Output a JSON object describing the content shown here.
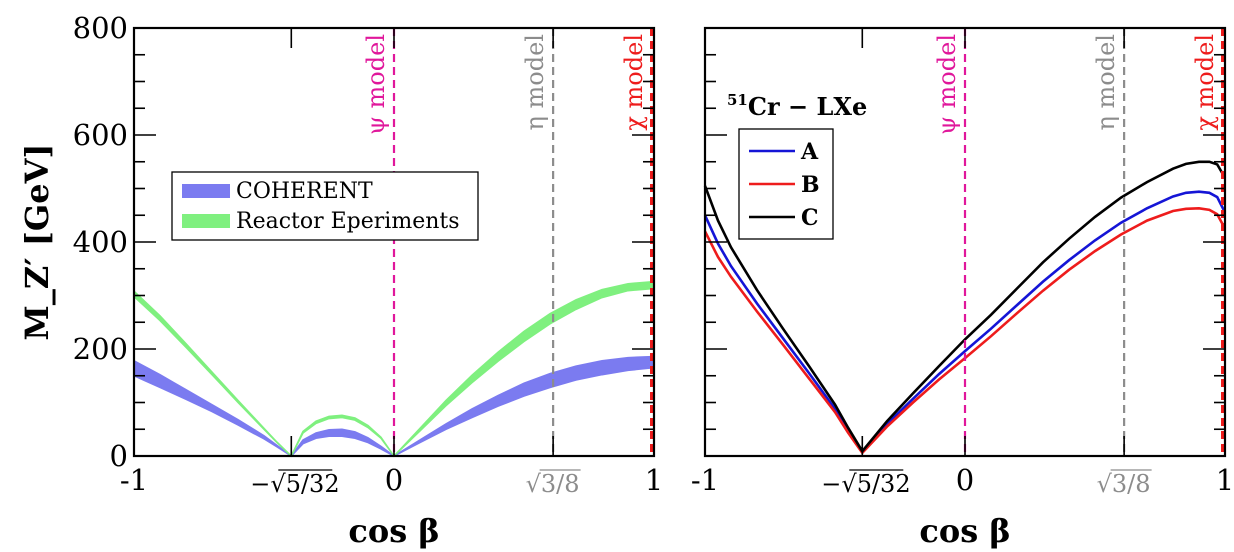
{
  "chart_data": [
    {
      "type": "area",
      "panel": "left",
      "xlabel": "cos β",
      "ylabel": "M_Z′ [GeV]",
      "xlim": [
        -1,
        1
      ],
      "ylim": [
        0,
        800
      ],
      "y_ticks": [
        "0",
        "200",
        "400",
        "600",
        "800"
      ],
      "x_ticks": [
        {
          "value": -1,
          "label": "-1",
          "color": "#000000"
        },
        {
          "value": -0.395,
          "label": "−√5/32",
          "color": "#000000"
        },
        {
          "value": 0,
          "label": "0",
          "color": "#e0179b"
        },
        {
          "value": 0.612,
          "label": "√3/8",
          "color": "#8c8c8c"
        },
        {
          "value": 1,
          "label": "1",
          "color": "#ee1c1c"
        }
      ],
      "vlines": [
        {
          "x": 0,
          "label": "ψ model",
          "color": "#e0179b"
        },
        {
          "x": 0.612,
          "label": "η model",
          "color": "#8c8c8c"
        },
        {
          "x": 1,
          "label": "χ model",
          "color": "#ee1c1c"
        }
      ],
      "legend": {
        "position": "center-left",
        "entries": [
          {
            "name": "COHERENT",
            "color": "#7b7bf0"
          },
          {
            "name": "Reactor Eperiments",
            "color": "#7ff07f"
          }
        ]
      },
      "series": [
        {
          "name": "COHERENT",
          "color": "#7b7bf0",
          "x": [
            -1,
            -0.9,
            -0.8,
            -0.7,
            -0.6,
            -0.5,
            -0.45,
            -0.395,
            -0.35,
            -0.3,
            -0.25,
            -0.2,
            -0.15,
            -0.1,
            -0.05,
            0,
            0.1,
            0.2,
            0.3,
            0.4,
            0.5,
            0.6,
            0.7,
            0.8,
            0.9,
            1
          ],
          "lower": [
            150,
            128,
            106,
            83,
            58,
            32,
            17,
            0,
            23,
            33,
            37,
            37,
            33,
            25,
            13,
            0,
            25,
            50,
            72,
            93,
            112,
            128,
            142,
            152,
            160,
            165
          ],
          "upper": [
            178,
            152,
            124,
            96,
            68,
            38,
            20,
            0,
            30,
            43,
            49,
            50,
            45,
            34,
            18,
            0,
            30,
            60,
            88,
            113,
            136,
            154,
            168,
            178,
            184,
            186
          ]
        },
        {
          "name": "Reactor Eperiments",
          "color": "#7ff07f",
          "x": [
            -1,
            -0.9,
            -0.8,
            -0.7,
            -0.6,
            -0.5,
            -0.45,
            -0.395,
            -0.35,
            -0.3,
            -0.25,
            -0.2,
            -0.15,
            -0.1,
            -0.05,
            0,
            0.1,
            0.2,
            0.3,
            0.4,
            0.5,
            0.6,
            0.7,
            0.8,
            0.9,
            1
          ],
          "lower": [
            298,
            253,
            203,
            152,
            100,
            50,
            25,
            0,
            43,
            61,
            70,
            72,
            67,
            53,
            33,
            0,
            47,
            94,
            137,
            177,
            214,
            247,
            274,
            296,
            309,
            313
          ],
          "upper": [
            308,
            262,
            210,
            157,
            104,
            52,
            26,
            0,
            46,
            65,
            74,
            76,
            71,
            57,
            35,
            0,
            52,
            104,
            151,
            194,
            233,
            266,
            292,
            311,
            322,
            326
          ]
        }
      ]
    },
    {
      "type": "line",
      "panel": "right",
      "xlabel": "cos β",
      "xlim": [
        -1,
        1
      ],
      "ylim": [
        0,
        800
      ],
      "x_ticks": [
        {
          "value": -1,
          "label": "-1",
          "color": "#000000"
        },
        {
          "value": -0.395,
          "label": "−√5/32",
          "color": "#000000"
        },
        {
          "value": 0,
          "label": "0",
          "color": "#e0179b"
        },
        {
          "value": 0.612,
          "label": "√3/8",
          "color": "#8c8c8c"
        },
        {
          "value": 1,
          "label": "1",
          "color": "#ee1c1c"
        }
      ],
      "vlines": [
        {
          "x": 0,
          "label": "ψ model",
          "color": "#e0179b"
        },
        {
          "x": 0.612,
          "label": "η model",
          "color": "#8c8c8c"
        },
        {
          "x": 1,
          "label": "χ model",
          "color": "#ee1c1c"
        }
      ],
      "annotation": {
        "sup": "51",
        "main": "Cr − LXe"
      },
      "legend": {
        "position": "upper-left",
        "entries": [
          {
            "name": "A",
            "color": "#1515d6"
          },
          {
            "name": "B",
            "color": "#ee1c1c"
          },
          {
            "name": "C",
            "color": "#000000"
          }
        ]
      },
      "series": [
        {
          "name": "A",
          "color": "#1515d6",
          "x": [
            -1,
            -0.95,
            -0.9,
            -0.8,
            -0.7,
            -0.6,
            -0.5,
            -0.45,
            -0.395,
            -0.3,
            -0.2,
            -0.1,
            0,
            0.1,
            0.2,
            0.3,
            0.4,
            0.5,
            0.6,
            0.7,
            0.8,
            0.85,
            0.9,
            0.94,
            0.97,
            1
          ],
          "y": [
            450,
            397,
            355,
            285,
            220,
            155,
            88,
            48,
            8,
            60,
            107,
            153,
            196,
            238,
            282,
            326,
            366,
            403,
            436,
            463,
            485,
            492,
            494,
            492,
            484,
            455
          ]
        },
        {
          "name": "B",
          "color": "#ee1c1c",
          "x": [
            -1,
            -0.95,
            -0.9,
            -0.8,
            -0.7,
            -0.6,
            -0.5,
            -0.45,
            -0.395,
            -0.3,
            -0.2,
            -0.1,
            0,
            0.1,
            0.2,
            0.3,
            0.4,
            0.5,
            0.6,
            0.7,
            0.8,
            0.85,
            0.9,
            0.94,
            0.97,
            1
          ],
          "y": [
            420,
            372,
            335,
            270,
            208,
            145,
            82,
            44,
            6,
            55,
            100,
            143,
            183,
            224,
            267,
            309,
            348,
            383,
            414,
            440,
            458,
            462,
            463,
            460,
            452,
            425
          ]
        },
        {
          "name": "C",
          "color": "#000000",
          "x": [
            -1,
            -0.95,
            -0.9,
            -0.8,
            -0.7,
            -0.6,
            -0.5,
            -0.45,
            -0.395,
            -0.3,
            -0.2,
            -0.1,
            0,
            0.1,
            0.2,
            0.3,
            0.4,
            0.5,
            0.6,
            0.7,
            0.8,
            0.85,
            0.9,
            0.94,
            0.97,
            1
          ],
          "y": [
            505,
            440,
            390,
            310,
            238,
            168,
            96,
            53,
            9,
            65,
            117,
            168,
            218,
            264,
            313,
            362,
            406,
            447,
            483,
            512,
            537,
            546,
            550,
            550,
            545,
            520
          ]
        }
      ]
    }
  ]
}
